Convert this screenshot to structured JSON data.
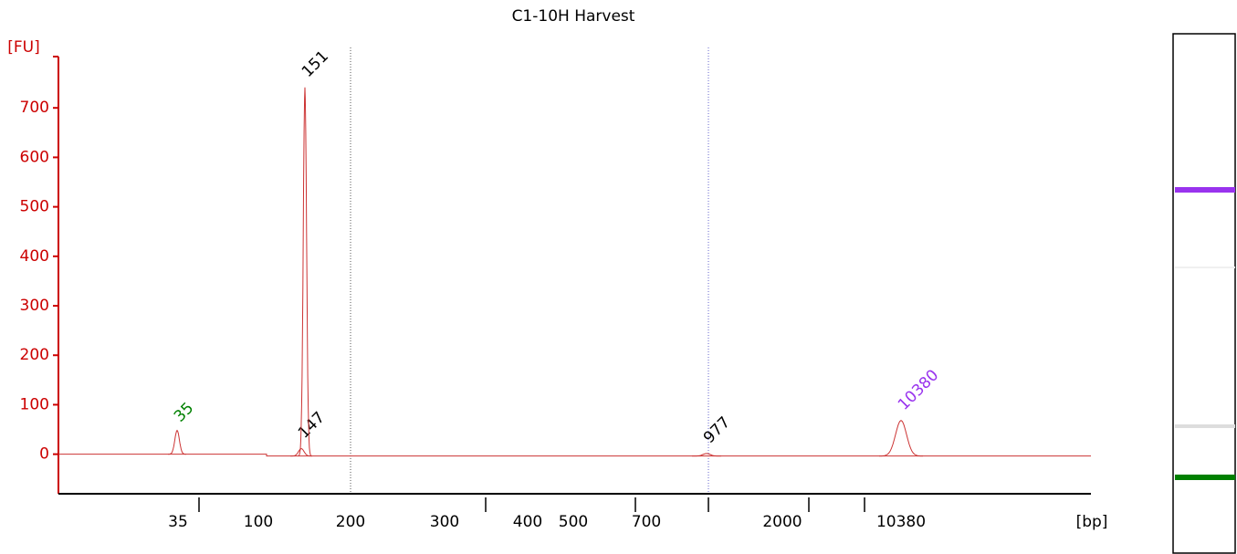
{
  "chart_data": {
    "type": "electropherogram",
    "title": "C1-10H Harvest",
    "y_label": "[FU]",
    "x_label": "[bp]",
    "ylim": [
      -80,
      800
    ],
    "yticks": [
      0,
      100,
      200,
      300,
      400,
      500,
      600,
      700
    ],
    "categories": [
      "35",
      "100",
      "200",
      "300",
      "400",
      "500",
      "700",
      "2000",
      "10380"
    ],
    "axis_color": "#cc0000",
    "trace_color": "#cc3333",
    "peaks": [
      {
        "label": "35",
        "height": 48,
        "color": "#008000"
      },
      {
        "label": "147",
        "height": 15,
        "color": "#000000"
      },
      {
        "label": "151",
        "height": 745,
        "color": "#000000"
      },
      {
        "label": "977",
        "height": 5,
        "color": "#000000"
      },
      {
        "label": "10380",
        "height": 72,
        "color": "#9933ee"
      }
    ]
  }
}
